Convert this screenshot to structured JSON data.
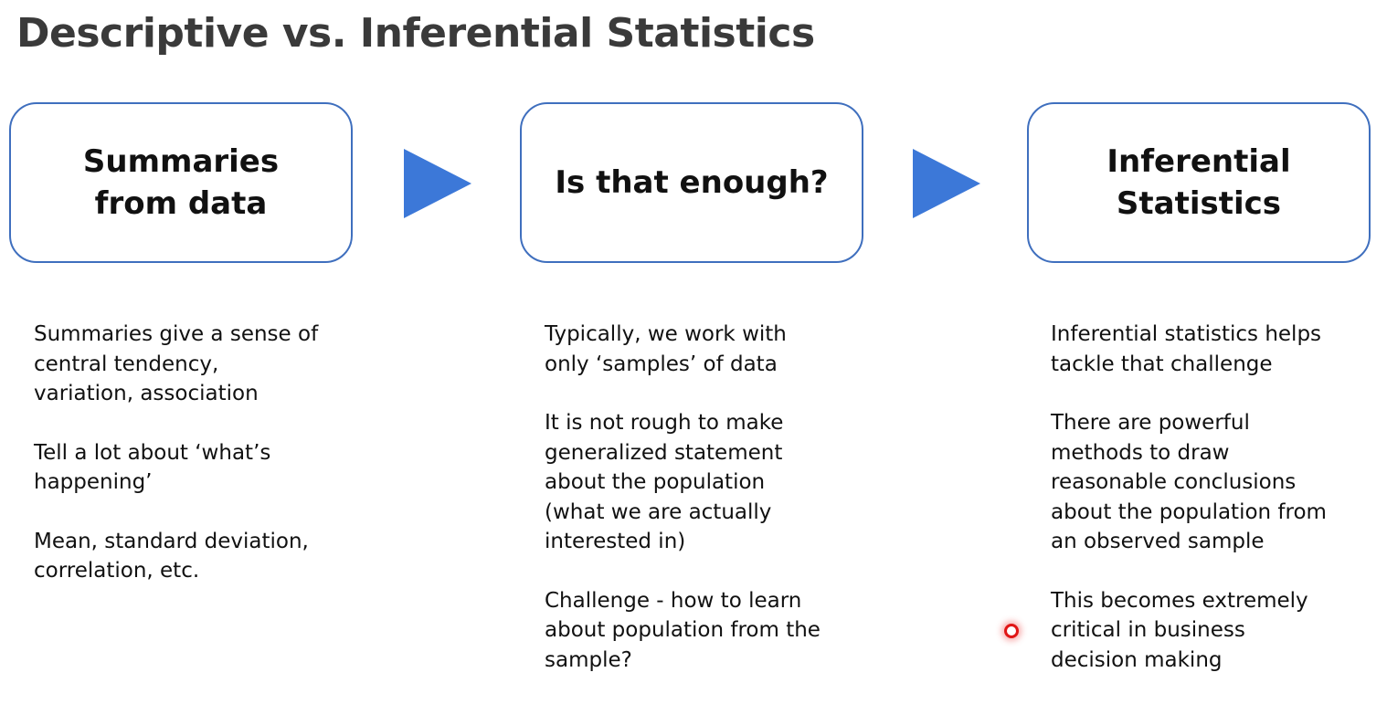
{
  "title": "Descriptive vs. Inferential Statistics",
  "colors": {
    "box_border": "#3f6fbe",
    "arrow": "#3c78d8",
    "title": "#3a3a3a",
    "pointer": "#e01616"
  },
  "flow": {
    "boxes": [
      {
        "label": "Summaries from data"
      },
      {
        "label": "Is that enough?"
      },
      {
        "label": "Inferential Statistics"
      }
    ],
    "arrows": [
      "play-arrow-icon",
      "play-arrow-icon"
    ]
  },
  "columns": [
    {
      "paragraphs": [
        "Summaries give a sense of\ncentral tendency,\nvariation, association",
        "Tell a lot about ‘what’s\nhappening’",
        "Mean, standard deviation,\ncorrelation, etc."
      ]
    },
    {
      "paragraphs": [
        "Typically, we work with\nonly ‘samples’ of data",
        "It is not rough to make\ngeneralized statement\nabout the population\n(what we are actually\ninterested in)",
        "Challenge - how to learn\nabout population from the\nsample?"
      ]
    },
    {
      "paragraphs": [
        "Inferential statistics helps\ntackle that challenge",
        "There are powerful\nmethods to draw\nreasonable conclusions\nabout the population from\nan observed sample",
        "This becomes extremely\ncritical in business\ndecision making"
      ]
    }
  ],
  "cursor": {
    "icon": "laser-pointer-icon"
  }
}
